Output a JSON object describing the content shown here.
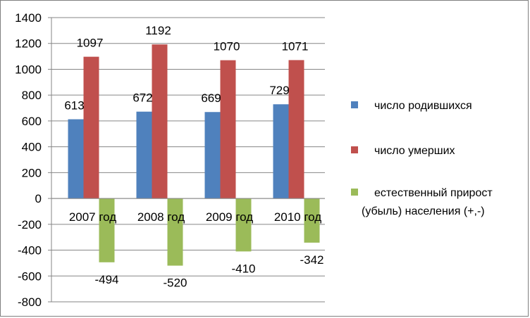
{
  "chart_data": {
    "type": "bar",
    "categories": [
      "2007 год",
      "2008 год",
      "2009 год",
      "2010 год"
    ],
    "series": [
      {
        "name": "число родившихся",
        "color": "#4F81BD",
        "values": [
          613,
          672,
          669,
          729
        ]
      },
      {
        "name": "число умерших",
        "color": "#C0504D",
        "values": [
          1097,
          1192,
          1070,
          1071
        ]
      },
      {
        "name": "естественный прирост (убыль) населения (+,-)",
        "color": "#9BBB59",
        "values": [
          -494,
          -520,
          -410,
          -342
        ]
      }
    ],
    "ylim": [
      -800,
      1400
    ],
    "ytick_step": 200,
    "grid": true,
    "legend_position": "right",
    "legend_lines": [
      [
        "число родившихся"
      ],
      [
        "число умерших"
      ],
      [
        "естественный прирост",
        "(убыль) населения (+,-)"
      ]
    ],
    "title": "",
    "xlabel": "",
    "ylabel": ""
  }
}
